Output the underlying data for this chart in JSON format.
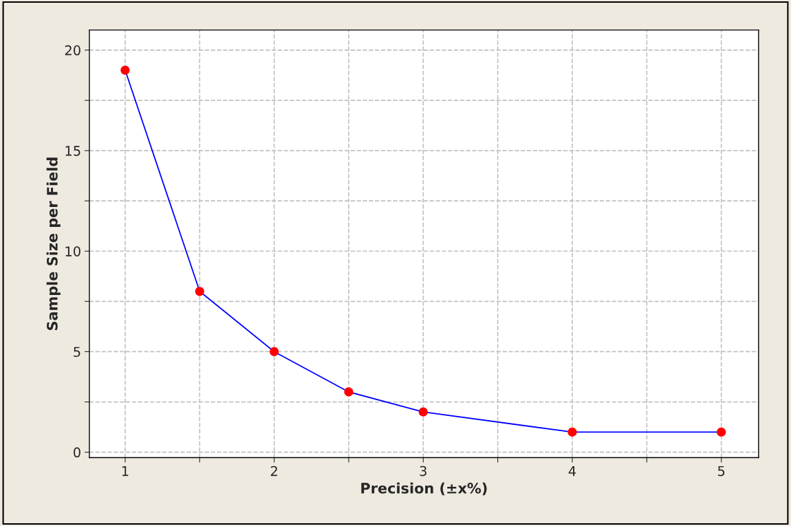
{
  "chart_data": {
    "type": "line",
    "xlabel": "Precision (±x%)",
    "ylabel": "Sample Size per Field",
    "x": [
      1,
      1.5,
      2,
      2.5,
      3,
      4,
      5
    ],
    "series": [
      {
        "color": "#0000ff",
        "colors": [
          "#ff0000",
          "#ff0000",
          "#ff0000",
          "#ff0000",
          "#ff0000",
          "#ff0000",
          "#ff0000"
        ],
        "values": [
          19,
          8,
          5,
          3,
          2,
          1,
          1
        ]
      }
    ],
    "xlim": [
      0.76,
      5.25
    ],
    "ylim": [
      -0.27,
      21
    ],
    "xticks": [
      1,
      {
        "value": 1.5,
        "label": null
      },
      2,
      {
        "value": 2.5,
        "label": null
      },
      3,
      {
        "value": 3.5,
        "label": null
      },
      4,
      {
        "value": 4.5,
        "label": null
      },
      5
    ],
    "yticks": [
      0,
      {
        "value": 2.5,
        "label": null
      },
      5,
      {
        "value": 7.5,
        "label": null
      },
      10,
      {
        "value": 12.5,
        "label": null
      },
      15,
      {
        "value": 17.5,
        "label": null
      },
      20
    ],
    "grid": true,
    "marker": "circle",
    "line_style": "solid",
    "legend": false
  }
}
